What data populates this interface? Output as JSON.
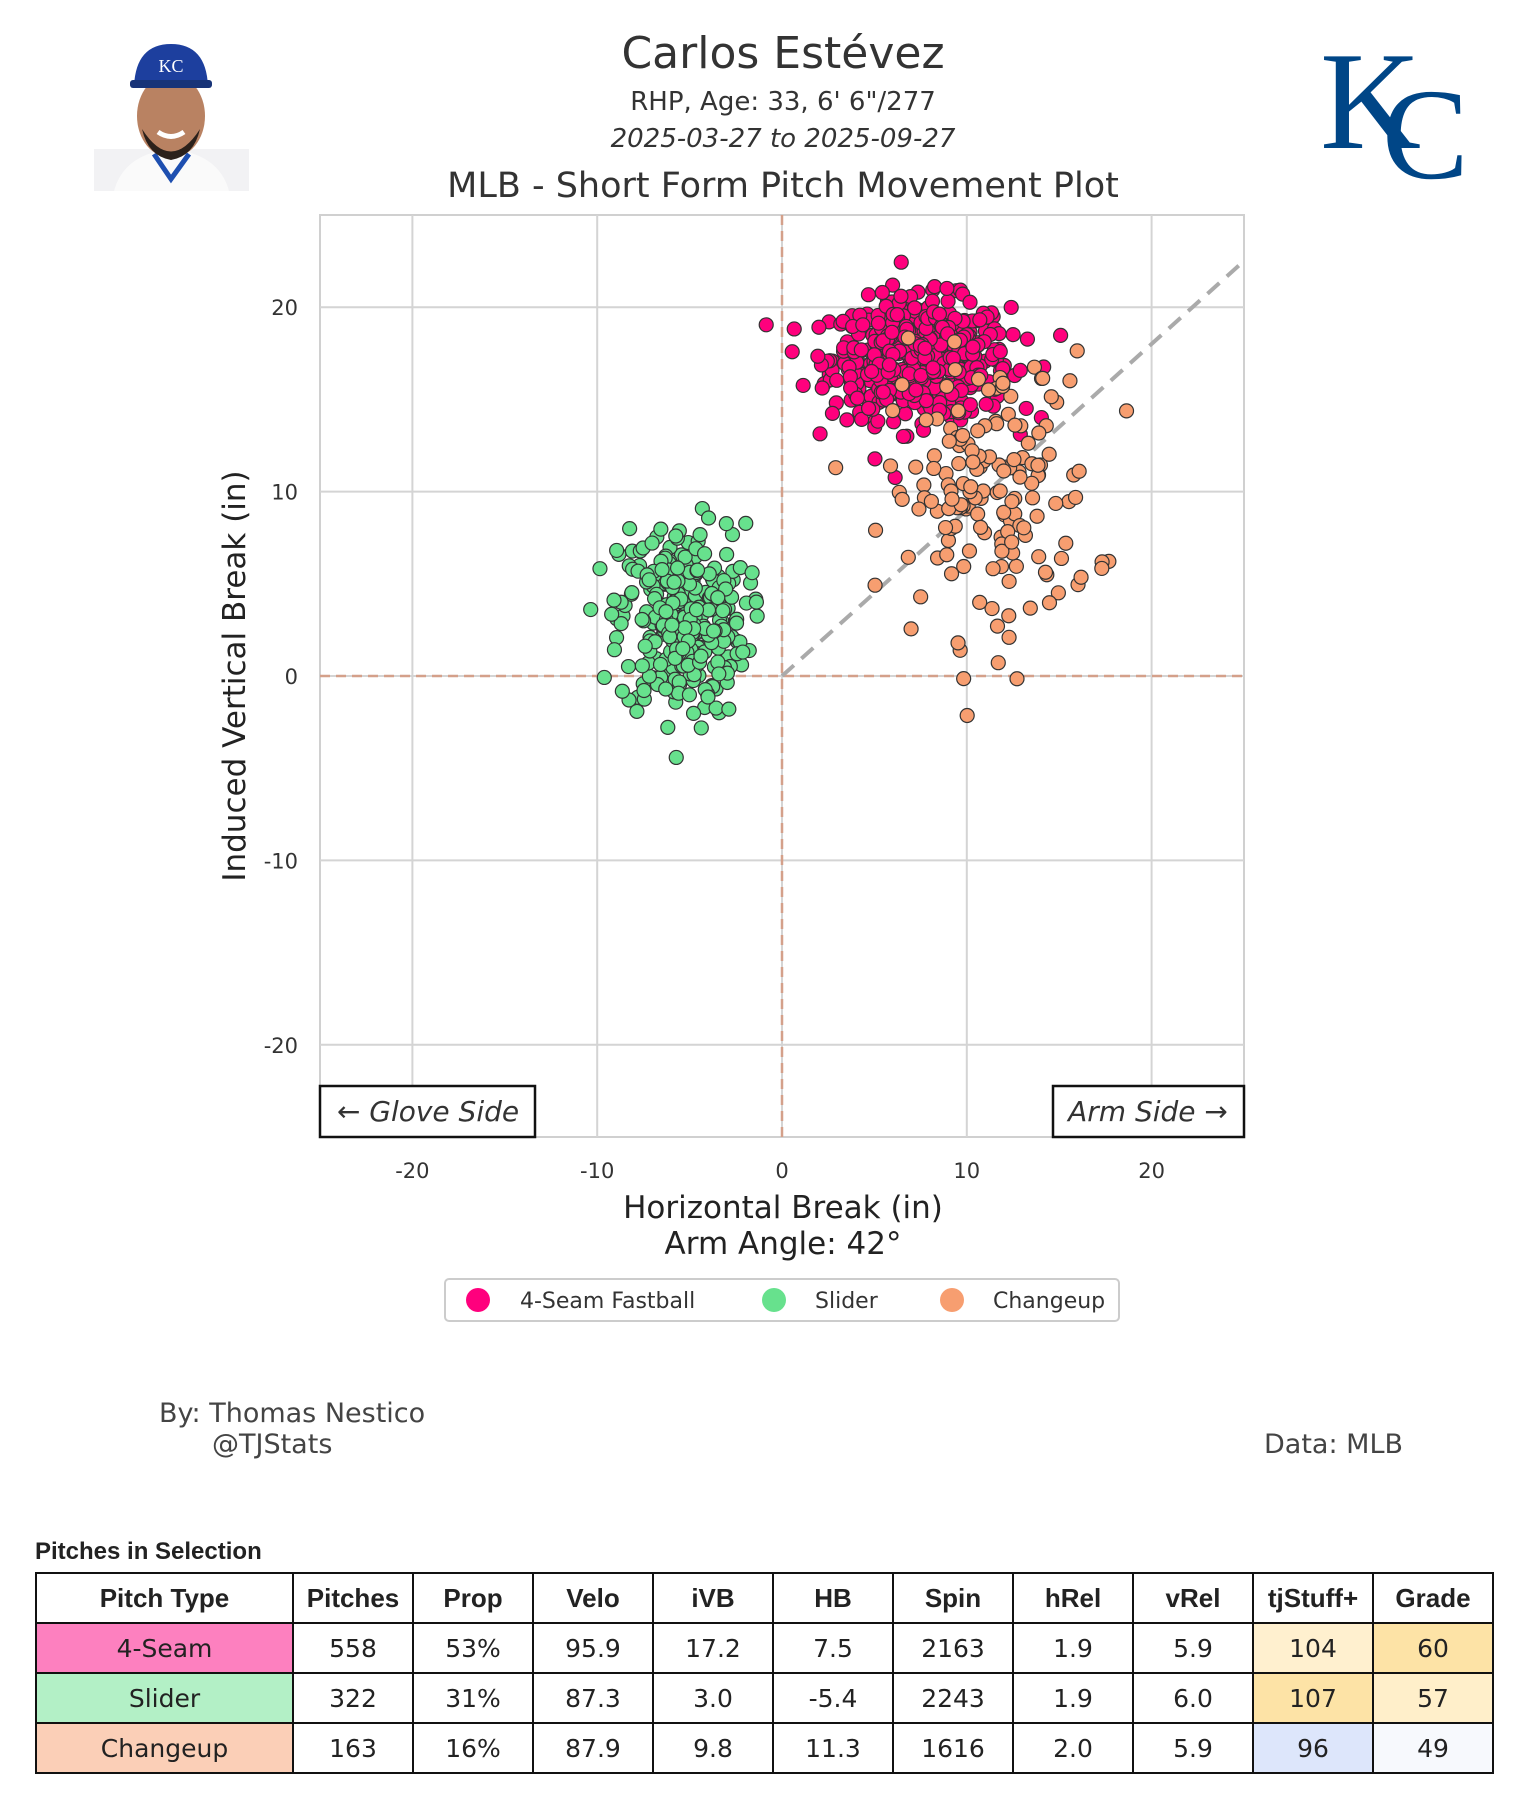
{
  "header": {
    "player_name": "Carlos Estévez",
    "bio": "RHP, Age: 33, 6' 6\"/277",
    "date_range": "2025-03-27 to 2025-09-27",
    "plot_title": "MLB - Short Form Pitch Movement Plot"
  },
  "logo": {
    "text": "KC",
    "color": "#004687"
  },
  "chart_data": {
    "type": "scatter",
    "title": "MLB - Short Form Pitch Movement Plot",
    "xlabel": "Horizontal Break (in)",
    "ylabel": "Induced Vertical Break (in)",
    "xlim": [
      -25,
      25
    ],
    "ylim": [
      -25,
      25
    ],
    "xticks": [
      -20,
      -10,
      0,
      10,
      20
    ],
    "yticks": [
      -20,
      -10,
      0,
      10,
      20
    ],
    "grid": true,
    "arm_angle_label": "Arm Angle: 42°",
    "arm_angle_deg": 42,
    "annotations": {
      "glove_side": "← Glove Side",
      "arm_side": "Arm Side →"
    },
    "legend_position": "bottom-center",
    "series": [
      {
        "name": "4-Seam Fastball",
        "color": "#FF007D",
        "count": 558,
        "mean_hb": 7.5,
        "mean_ivb": 17.2,
        "sd_hb": 2.4,
        "sd_ivb": 1.6
      },
      {
        "name": "Slider",
        "color": "#67E18D",
        "count": 322,
        "mean_hb": -5.4,
        "mean_ivb": 3.0,
        "sd_hb": 1.7,
        "sd_ivb": 2.6
      },
      {
        "name": "Changeup",
        "color": "#F79E70",
        "count": 163,
        "mean_hb": 11.3,
        "mean_ivb": 9.8,
        "sd_hb": 2.8,
        "sd_ivb": 3.8
      }
    ]
  },
  "credits": {
    "by": "By: Thomas Nestico",
    "handle": "@TJStats",
    "source": "Data: MLB"
  },
  "table": {
    "title": "Pitches in Selection",
    "columns": [
      "Pitch Type",
      "Pitches",
      "Prop",
      "Velo",
      "iVB",
      "HB",
      "Spin",
      "hRel",
      "vRel",
      "tjStuff+",
      "Grade"
    ],
    "rows": [
      {
        "cells": [
          "4-Seam",
          "558",
          "53%",
          "95.9",
          "17.2",
          "7.5",
          "2163",
          "1.9",
          "5.9",
          "104",
          "60"
        ],
        "colors": [
          "#FD80BF",
          "#fff",
          "#fff",
          "#fff",
          "#fff",
          "#fff",
          "#fff",
          "#fff",
          "#fff",
          "#FFF0CF",
          "#FDE3A6"
        ]
      },
      {
        "cells": [
          "Slider",
          "322",
          "31%",
          "87.3",
          "3.0",
          "-5.4",
          "2243",
          "1.9",
          "6.0",
          "107",
          "57"
        ],
        "colors": [
          "#B3F0C6",
          "#fff",
          "#fff",
          "#fff",
          "#fff",
          "#fff",
          "#fff",
          "#fff",
          "#fff",
          "#FDE3A6",
          "#FFEFCA"
        ]
      },
      {
        "cells": [
          "Changeup",
          "163",
          "16%",
          "87.9",
          "9.8",
          "11.3",
          "1616",
          "2.0",
          "5.9",
          "96",
          "49"
        ],
        "colors": [
          "#FBCFB7",
          "#fff",
          "#fff",
          "#fff",
          "#fff",
          "#fff",
          "#fff",
          "#fff",
          "#fff",
          "#DDE6FB",
          "#F7F9FD"
        ]
      }
    ]
  }
}
